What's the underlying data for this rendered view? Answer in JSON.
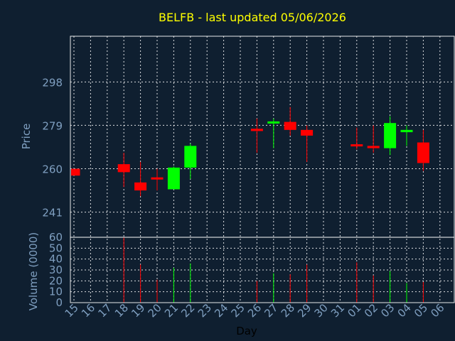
{
  "chart_data": {
    "type": "candlestick",
    "title": "BELFB - last updated 05/06/2026",
    "ylabel": "Price",
    "volume_label": "Volume (0000)",
    "xlabel": "Day",
    "price_ticks": [
      241,
      260,
      279,
      298
    ],
    "price_ylim": [
      230,
      318
    ],
    "volume_ticks": [
      0,
      10,
      20,
      30,
      40,
      50,
      60
    ],
    "volume_ylim": [
      0,
      60
    ],
    "x_ticks": [
      "15",
      "16",
      "17",
      "18",
      "19",
      "20",
      "21",
      "22",
      "23",
      "24",
      "25",
      "26",
      "27",
      "28",
      "29",
      "30",
      "31",
      "01",
      "02",
      "03",
      "04",
      "05",
      "06"
    ],
    "grid": true,
    "colors": {
      "up": "#00ff00",
      "down": "#ff0000",
      "title": "#ffff00",
      "background": "#0f1f30"
    },
    "candles": [
      {
        "day": "15",
        "open": 260,
        "close": 257,
        "high": 260,
        "low": 257,
        "volume": 0
      },
      {
        "day": "18",
        "open": 262,
        "close": 258.5,
        "high": 267,
        "low": 252,
        "volume": 60
      },
      {
        "day": "19",
        "open": 254,
        "close": 250.5,
        "high": 263,
        "low": 248,
        "volume": 35
      },
      {
        "day": "20",
        "open": 256,
        "close": 255.5,
        "high": 260,
        "low": 250.5,
        "volume": 21
      },
      {
        "day": "21",
        "open": 251,
        "close": 260.5,
        "high": 261,
        "low": 251,
        "volume": 32
      },
      {
        "day": "22",
        "open": 260.5,
        "close": 270,
        "high": 271,
        "low": 255.5,
        "volume": 36
      },
      {
        "day": "26",
        "open": 277.5,
        "close": 276.5,
        "high": 282,
        "low": 267,
        "volume": 20
      },
      {
        "day": "27",
        "open": 280,
        "close": 280.5,
        "high": 282,
        "low": 269,
        "volume": 27
      },
      {
        "day": "28",
        "open": 280.5,
        "close": 277,
        "high": 287,
        "low": 274.5,
        "volume": 26
      },
      {
        "day": "29",
        "open": 277,
        "close": 274.5,
        "high": 279,
        "low": 263,
        "volume": 35
      },
      {
        "day": "01",
        "open": 270.5,
        "close": 270,
        "high": 278,
        "low": 268.5,
        "volume": 37
      },
      {
        "day": "02",
        "open": 270,
        "close": 269,
        "high": 279,
        "low": 267,
        "volume": 25
      },
      {
        "day": "03",
        "open": 269,
        "close": 280,
        "high": 283,
        "low": 266,
        "volume": 29
      },
      {
        "day": "04",
        "open": 276,
        "close": 277,
        "high": 279,
        "low": 270,
        "volume": 18
      },
      {
        "day": "05",
        "open": 271.5,
        "close": 262.5,
        "high": 277,
        "low": 259,
        "volume": 19
      }
    ]
  }
}
